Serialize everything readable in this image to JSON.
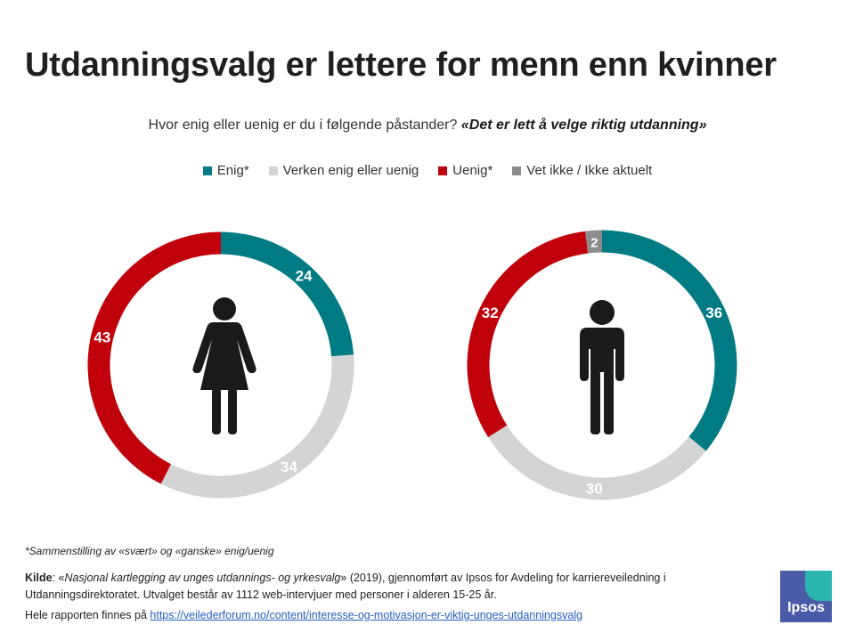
{
  "title": "Utdanningsvalg er lettere for menn enn kvinner",
  "question": {
    "prefix": "Hvor enig eller uenig er du i følgende påstander?",
    "statement": "«Det er lett å velge riktig utdanning»"
  },
  "legend": [
    {
      "label": "Enig*",
      "color": "#007b83"
    },
    {
      "label": "Verken enig eller uenig",
      "color": "#d4d4d4"
    },
    {
      "label": "Uenig*",
      "color": "#c0000b"
    },
    {
      "label": "Vet ikke / Ikke aktuelt",
      "color": "#8c8c8c"
    }
  ],
  "chart_data": [
    {
      "type": "pie",
      "variant": "donut",
      "group": "female",
      "icon": "female-figure-icon",
      "categories": [
        "Enig*",
        "Verken enig eller uenig",
        "Uenig*",
        "Vet ikke / Ikke aktuelt"
      ],
      "values": [
        24,
        34,
        43,
        0
      ],
      "labels": [
        "24",
        "34",
        "43",
        ""
      ],
      "colors": [
        "#007b83",
        "#d4d4d4",
        "#c0000b",
        "#8c8c8c"
      ],
      "unit": "%"
    },
    {
      "type": "pie",
      "variant": "donut",
      "group": "male",
      "icon": "male-figure-icon",
      "categories": [
        "Enig*",
        "Verken enig eller uenig",
        "Uenig*",
        "Vet ikke / Ikke aktuelt"
      ],
      "values": [
        36,
        30,
        32,
        2
      ],
      "labels": [
        "36",
        "30",
        "32",
        "2"
      ],
      "colors": [
        "#007b83",
        "#d4d4d4",
        "#c0000b",
        "#8c8c8c"
      ],
      "unit": "%"
    }
  ],
  "footnote": "*Sammenstilling av «svært» og «ganske» enig/uenig",
  "source": {
    "label": "Kilde",
    "pre": ": «",
    "publication": "Nasjonal kartlegging av unges utdannings- og yrkesvalg",
    "post": "» (2019), gjennomført av Ipsos for Avdeling for karriereveiledning i Utdanningsdirektoratet. Utvalget består av 1112 web-intervjuer med personer i alderen 15-25 år."
  },
  "report": {
    "text": "Hele rapporten finnes på",
    "link": "https://veilederforum.no/content/interesse-og-motivasjon-er-viktig-unges-utdanningsvalg"
  },
  "logo": {
    "text": "Ipsos"
  }
}
